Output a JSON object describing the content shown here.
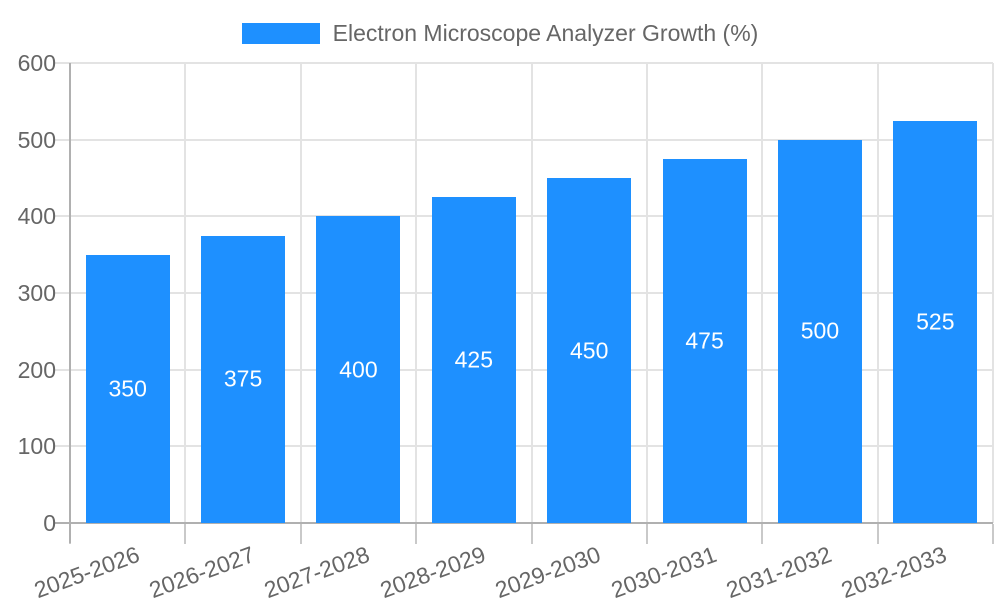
{
  "legend": {
    "label": "Electron Microscope Analyzer Growth (%)",
    "swatch_color": "#1e90ff"
  },
  "chart_data": {
    "type": "bar",
    "title": "Electron Microscope Analyzer Growth (%)",
    "categories": [
      "2025-2026",
      "2026-2027",
      "2027-2028",
      "2028-2029",
      "2029-2030",
      "2030-2031",
      "2031-2032",
      "2032-2033"
    ],
    "values": [
      350,
      375,
      400,
      425,
      450,
      475,
      500,
      525
    ],
    "xlabel": "",
    "ylabel": "",
    "ylim": [
      0,
      600
    ],
    "yticks": [
      0,
      100,
      200,
      300,
      400,
      500,
      600
    ],
    "grid": true,
    "legend_position": "top",
    "value_labels_inside_bars": true,
    "colors": {
      "bar": "#1e90ff",
      "value_label": "#ffffff",
      "axis_text": "#666666",
      "gridline": "#e3e3e3",
      "axis_line": "#b0b0b0",
      "tick": "#c9c9c9"
    }
  }
}
